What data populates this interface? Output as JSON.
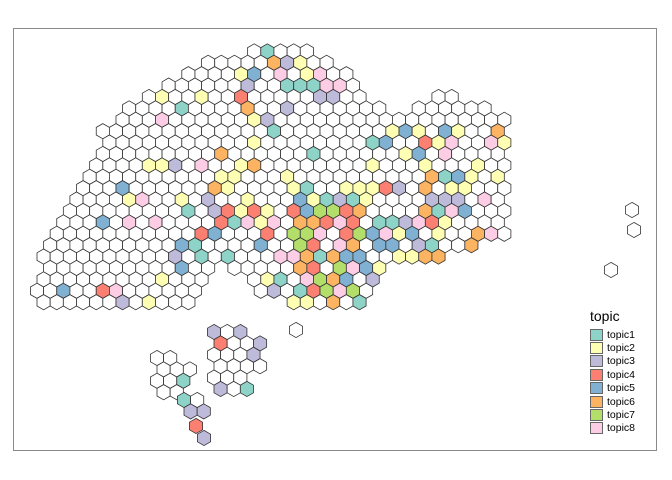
{
  "chart_data": {
    "type": "hexbin-map",
    "legend": {
      "title": "topic",
      "placement": "bottom-right",
      "entries": [
        {
          "label": "topic1",
          "color": "#8DD3C7"
        },
        {
          "label": "topic2",
          "color": "#FFFFB3"
        },
        {
          "label": "topic3",
          "color": "#BEBADA"
        },
        {
          "label": "topic4",
          "color": "#FB8072"
        },
        {
          "label": "topic5",
          "color": "#80B1D3"
        },
        {
          "label": "topic6",
          "color": "#FDB462"
        },
        {
          "label": "topic7",
          "color": "#B3DE69"
        },
        {
          "label": "topic8",
          "color": "#FCCDE5"
        }
      ]
    },
    "empty_fill": "#ffffff",
    "cell_stroke": "#333333",
    "frame": true
  }
}
